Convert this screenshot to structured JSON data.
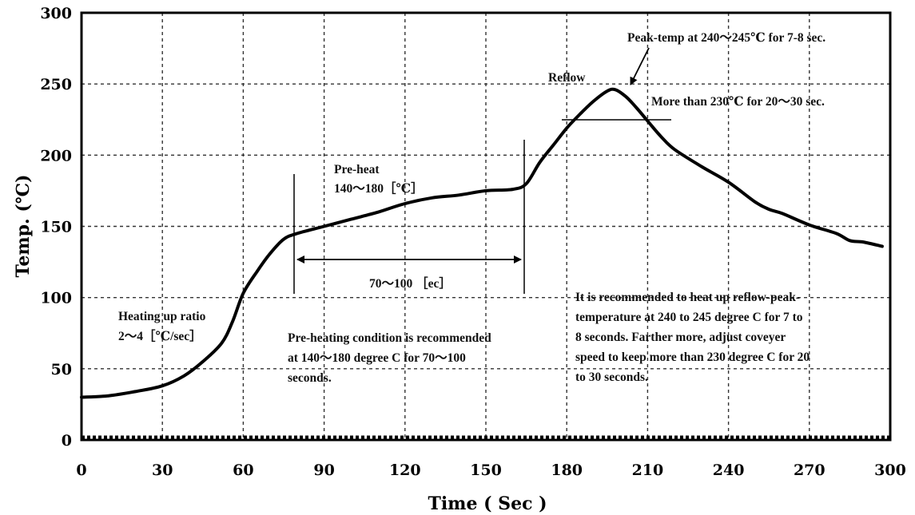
{
  "chart_data": {
    "type": "line",
    "xlabel": "Time ( Sec )",
    "ylabel": "Temp. (℃)",
    "x_ticks": [
      "0",
      "30",
      "60",
      "90",
      "120",
      "150",
      "180",
      "210",
      "240",
      "270",
      "300"
    ],
    "y_ticks": [
      "0",
      "50",
      "100",
      "150",
      "200",
      "250",
      "300"
    ],
    "xlim": [
      0,
      300
    ],
    "ylim": [
      0,
      300
    ],
    "grid": true,
    "series": [
      {
        "x": [
          0,
          10,
          20,
          30,
          38,
          45,
          52,
          56,
          60,
          65,
          70,
          75,
          80,
          90,
          100,
          110,
          120,
          130,
          140,
          150,
          160,
          165,
          170,
          175,
          180,
          185,
          190,
          195,
          198,
          202,
          206,
          210,
          215,
          220,
          230,
          240,
          250,
          255,
          260,
          270,
          280,
          285,
          290,
          297
        ],
        "y": [
          30,
          31,
          34,
          38,
          45,
          55,
          68,
          83,
          103,
          118,
          131,
          141,
          145,
          150,
          155,
          160,
          166,
          170,
          172,
          175,
          176,
          180,
          195,
          207,
          219,
          229,
          238,
          245,
          246,
          241,
          233,
          224,
          213,
          204,
          192,
          181,
          167,
          162,
          159,
          151,
          145,
          140,
          139,
          136
        ]
      }
    ],
    "annotations": {
      "peak": "Peak-temp at 240～245℃ for 7-8 sec.",
      "reflow": "Reflow",
      "over230": "More than 230℃ for 20～30 sec.",
      "preheat_title": "Pre-heat",
      "preheat_range": "140～180［℃］",
      "preheat_duration": "70～100 ［ec］",
      "heating_title": "Heating up ratio",
      "heating_rate": "2～4［℃/sec］",
      "preheat_note": [
        "Pre-heating condition is recommended",
        "at 140～180 degree C for 70～100",
        "seconds."
      ],
      "reflow_note": [
        "It is recommended to heat up reflow-peak-",
        "temperature at 240 to 245 degree C for 7 to",
        "8 seconds. Farther more, adjust coveyer",
        "speed to keep more than 230 degree C for 20",
        "to 30  seconds."
      ]
    }
  }
}
